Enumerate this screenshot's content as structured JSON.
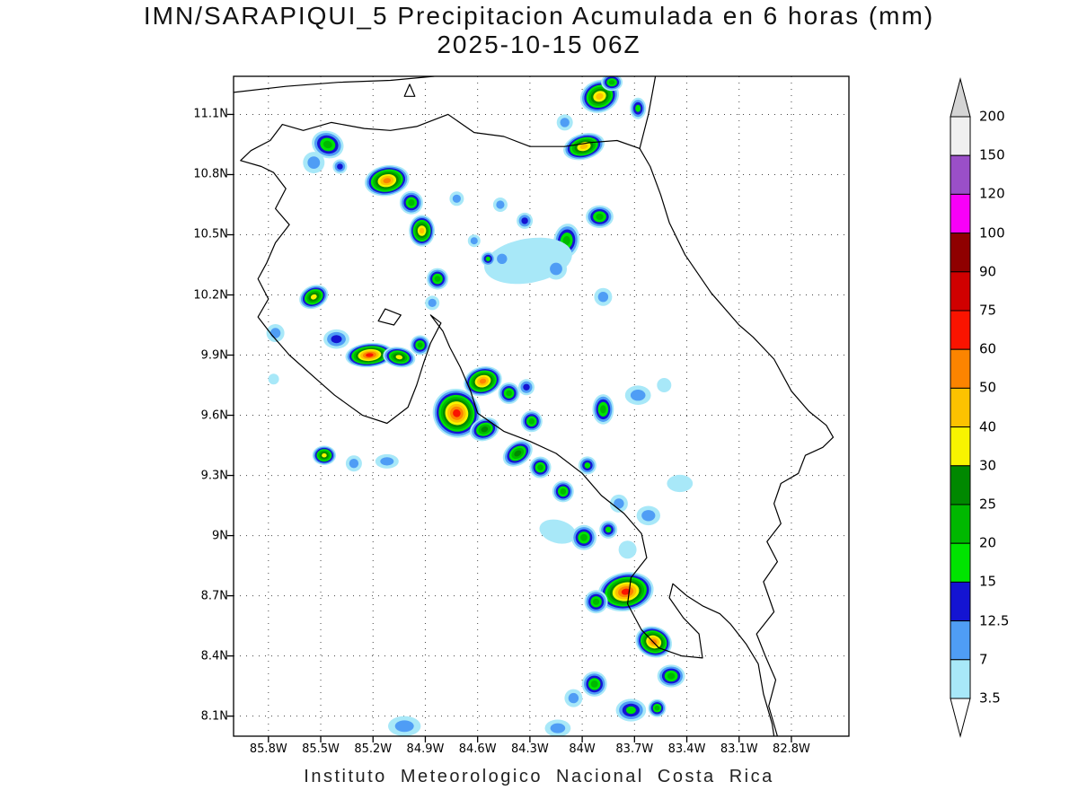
{
  "title": {
    "line1": "IMN/SARAPIQUI_5 Precipitacion Acumulada en 6 horas (mm)",
    "line2": "2025-10-15 06Z"
  },
  "footer": "Instituto Meteorologico Nacional Costa Rica",
  "axes": {
    "lat_values": [
      11.1,
      10.8,
      10.5,
      10.2,
      9.9,
      9.6,
      9.3,
      9.0,
      8.7,
      8.4,
      8.1
    ],
    "lat_labels": [
      "11.1N",
      "10.8N",
      "10.5N",
      "10.2N",
      "9.9N",
      "9.6N",
      "9.3N",
      "9N",
      "8.7N",
      "8.4N",
      "8.1N"
    ],
    "lon_values": [
      85.8,
      85.5,
      85.2,
      84.9,
      84.6,
      84.3,
      84.0,
      83.7,
      83.4,
      83.1,
      82.8
    ],
    "lon_labels": [
      "85.8W",
      "85.5W",
      "85.2W",
      "84.9W",
      "84.6W",
      "84.3W",
      "84W",
      "83.7W",
      "83.4W",
      "83.1W",
      "82.8W"
    ]
  },
  "colorbar": {
    "labels": [
      "200",
      "150",
      "120",
      "100",
      "90",
      "75",
      "60",
      "50",
      "40",
      "30",
      "25",
      "20",
      "15",
      "12.5",
      "7",
      "3.5"
    ]
  },
  "chart_data": {
    "type": "contour_map",
    "variable": "Precipitacion Acumulada en 6 horas",
    "units": "mm",
    "model": "IMN/SARAPIQUI_5",
    "valid_time": "2025-10-15 06Z",
    "extent": {
      "lon_west": 86.0,
      "lon_east": 82.47,
      "lat_north": 11.29,
      "lat_south": 8.0
    },
    "levels_mm": [
      3.5,
      7,
      12.5,
      15,
      20,
      25,
      30,
      40,
      50,
      60,
      75,
      90,
      100,
      120,
      150,
      200
    ],
    "level_colors": [
      "#a8e8f8",
      "#4f9df5",
      "#1414d2",
      "#00e400",
      "#00b800",
      "#008800",
      "#f8f400",
      "#fcc200",
      "#fc8400",
      "#fa1400",
      "#d00000",
      "#8f0000",
      "#f800f8",
      "#9a4fc8",
      "#f0f0f0"
    ],
    "above_top_color": "#d4d4d4",
    "below_bottom_color": "#ffffff",
    "cell_format": [
      "lon_w",
      "lat_n",
      "radius_px",
      "max_level_index",
      "x_stretch",
      "y_stretch",
      "rotation_deg"
    ],
    "cells": [
      [
        83.9,
        11.19,
        20,
        7,
        1.1,
        0.9,
        -20
      ],
      [
        83.83,
        11.26,
        12,
        4,
        1,
        0.8,
        0
      ],
      [
        83.99,
        10.94,
        18,
        7,
        1.3,
        0.8,
        -15
      ],
      [
        84.1,
        11.06,
        9,
        1,
        1,
        1,
        0
      ],
      [
        83.68,
        11.13,
        10,
        3,
        0.9,
        1.2,
        0
      ],
      [
        85.46,
        10.95,
        15,
        4,
        1.2,
        1,
        20
      ],
      [
        85.54,
        10.86,
        12,
        1,
        1,
        1,
        0
      ],
      [
        85.39,
        10.84,
        8,
        2,
        1,
        1,
        0
      ],
      [
        85.12,
        10.77,
        20,
        8,
        1.25,
        0.85,
        -10
      ],
      [
        84.98,
        10.66,
        13,
        4,
        1,
        1,
        30
      ],
      [
        84.72,
        10.68,
        8,
        1,
        1,
        1,
        0
      ],
      [
        84.47,
        10.65,
        8,
        1,
        1,
        1,
        0
      ],
      [
        84.33,
        10.57,
        9,
        2,
        1,
        1,
        0
      ],
      [
        84.92,
        10.52,
        16,
        7,
        0.9,
        1.1,
        0
      ],
      [
        84.83,
        10.28,
        12,
        4,
        1,
        1,
        0
      ],
      [
        84.86,
        10.16,
        8,
        1,
        1,
        1,
        0
      ],
      [
        84.09,
        10.47,
        16,
        4,
        0.9,
        1.2,
        10
      ],
      [
        83.9,
        10.59,
        14,
        4,
        1.1,
        0.9,
        0
      ],
      [
        84.31,
        10.37,
        38,
        0,
        1.3,
        0.65,
        -10
      ],
      [
        84.46,
        10.38,
        10,
        1,
        1,
        1,
        0
      ],
      [
        84.15,
        10.33,
        12,
        1,
        1,
        1,
        0
      ],
      [
        84.54,
        10.38,
        8,
        3,
        1,
        1,
        0
      ],
      [
        83.88,
        10.19,
        10,
        1,
        1,
        1,
        0
      ],
      [
        85.54,
        10.19,
        14,
        6,
        1.2,
        0.9,
        -25
      ],
      [
        85.76,
        10.01,
        10,
        1,
        1,
        1,
        0
      ],
      [
        85.41,
        9.98,
        12,
        2,
        1.2,
        0.9,
        0
      ],
      [
        85.22,
        9.9,
        18,
        9,
        1.5,
        0.75,
        -5
      ],
      [
        85.05,
        9.89,
        14,
        6,
        1.3,
        0.8,
        10
      ],
      [
        84.93,
        9.95,
        11,
        4,
        1,
        1,
        0
      ],
      [
        84.57,
        9.77,
        18,
        8,
        1.2,
        0.9,
        -15
      ],
      [
        84.42,
        9.71,
        12,
        4,
        1,
        1,
        0
      ],
      [
        84.32,
        9.74,
        9,
        2,
        1,
        1,
        0
      ],
      [
        84.72,
        9.61,
        24,
        9,
        1.1,
        1.15,
        -30
      ],
      [
        84.56,
        9.53,
        14,
        5,
        1.2,
        0.9,
        -20
      ],
      [
        84.29,
        9.57,
        12,
        4,
        1,
        1,
        0
      ],
      [
        83.88,
        9.63,
        14,
        4,
        0.85,
        1.2,
        0
      ],
      [
        83.68,
        9.7,
        12,
        1,
        1.2,
        0.9,
        0
      ],
      [
        83.53,
        9.75,
        8,
        0,
        1,
        1,
        0
      ],
      [
        85.48,
        9.4,
        12,
        6,
        1.1,
        0.9,
        0
      ],
      [
        85.31,
        9.36,
        9,
        1,
        1,
        1,
        0
      ],
      [
        85.12,
        9.37,
        10,
        1,
        1.3,
        0.8,
        0
      ],
      [
        84.37,
        9.41,
        15,
        5,
        1.2,
        0.85,
        -35
      ],
      [
        84.24,
        9.34,
        12,
        4,
        1,
        1,
        -30
      ],
      [
        84.11,
        9.22,
        12,
        4,
        1,
        1,
        0
      ],
      [
        83.97,
        9.35,
        10,
        3,
        1,
        1,
        0
      ],
      [
        83.79,
        9.16,
        10,
        1,
        1,
        1,
        0
      ],
      [
        83.62,
        9.1,
        12,
        1,
        1.1,
        0.9,
        0
      ],
      [
        83.44,
        9.26,
        12,
        0,
        1.2,
        0.8,
        0
      ],
      [
        84.14,
        9.02,
        16,
        0,
        1.3,
        0.8,
        15
      ],
      [
        83.99,
        8.99,
        14,
        4,
        1,
        1,
        0
      ],
      [
        83.85,
        9.03,
        10,
        3,
        1,
        1,
        0
      ],
      [
        83.74,
        8.93,
        10,
        0,
        1,
        1,
        0
      ],
      [
        83.75,
        8.72,
        24,
        9,
        1.3,
        0.9,
        -10
      ],
      [
        83.92,
        8.67,
        13,
        4,
        1,
        1,
        0
      ],
      [
        83.59,
        8.47,
        18,
        8,
        1.15,
        0.95,
        20
      ],
      [
        83.49,
        8.3,
        14,
        4,
        1.1,
        0.9,
        0
      ],
      [
        83.93,
        8.26,
        14,
        4,
        1,
        1,
        0
      ],
      [
        84.05,
        8.19,
        10,
        1,
        1,
        1,
        0
      ],
      [
        83.72,
        8.13,
        14,
        3,
        1.2,
        0.9,
        0
      ],
      [
        83.57,
        8.14,
        10,
        4,
        1,
        1,
        0
      ],
      [
        85.02,
        8.05,
        14,
        1,
        1.3,
        0.8,
        0
      ],
      [
        84.14,
        8.04,
        12,
        1,
        1.2,
        0.8,
        0
      ],
      [
        85.77,
        9.78,
        6,
        0,
        1,
        1,
        0
      ],
      [
        84.62,
        10.47,
        7,
        1,
        1,
        1,
        0
      ]
    ]
  },
  "map": {
    "coastlines": [
      {
        "name": "lake-nicaragua-shore",
        "closed": false,
        "pts": [
          [
            86.0,
            11.21
          ],
          [
            85.7,
            11.24
          ],
          [
            85.4,
            11.26
          ],
          [
            85.1,
            11.27
          ],
          [
            84.85,
            11.29
          ]
        ]
      },
      {
        "name": "lake-island",
        "closed": true,
        "pts": [
          [
            85.02,
            11.19
          ],
          [
            84.96,
            11.19
          ],
          [
            84.99,
            11.25
          ]
        ]
      },
      {
        "name": "nicaragua-border",
        "closed": false,
        "pts": [
          [
            85.72,
            11.05
          ],
          [
            85.6,
            11.02
          ],
          [
            85.44,
            11.06
          ],
          [
            85.25,
            11.03
          ],
          [
            85.1,
            11.02
          ],
          [
            84.95,
            11.04
          ],
          [
            84.77,
            11.1
          ],
          [
            84.62,
            11.01
          ],
          [
            84.45,
            10.99
          ],
          [
            84.3,
            10.94
          ],
          [
            84.1,
            10.94
          ],
          [
            83.95,
            10.96
          ],
          [
            83.8,
            10.97
          ],
          [
            83.67,
            10.93
          ]
        ]
      },
      {
        "name": "nicaragua-caribbean-coast",
        "closed": false,
        "pts": [
          [
            83.67,
            10.93
          ],
          [
            83.62,
            11.1
          ],
          [
            83.58,
            11.29
          ]
        ]
      },
      {
        "name": "caribbean-coast-panama-border",
        "closed": false,
        "pts": [
          [
            83.67,
            10.93
          ],
          [
            83.61,
            10.84
          ],
          [
            83.55,
            10.7
          ],
          [
            83.5,
            10.56
          ],
          [
            83.41,
            10.4
          ],
          [
            83.26,
            10.21
          ],
          [
            83.1,
            10.05
          ],
          [
            83.02,
            9.99
          ],
          [
            82.9,
            9.88
          ],
          [
            82.8,
            9.72
          ],
          [
            82.7,
            9.62
          ],
          [
            82.6,
            9.55
          ],
          [
            82.56,
            9.49
          ],
          [
            82.62,
            9.44
          ],
          [
            82.72,
            9.4
          ],
          [
            82.76,
            9.31
          ],
          [
            82.86,
            9.26
          ],
          [
            82.9,
            9.16
          ],
          [
            82.86,
            9.06
          ],
          [
            82.94,
            8.97
          ],
          [
            82.88,
            8.87
          ],
          [
            82.96,
            8.77
          ],
          [
            82.9,
            8.62
          ],
          [
            83.0,
            8.51
          ],
          [
            82.95,
            8.4
          ],
          [
            82.89,
            8.28
          ],
          [
            82.93,
            8.15
          ],
          [
            82.88,
            8.0
          ]
        ]
      },
      {
        "name": "pacific-coast",
        "closed": false,
        "pts": [
          [
            85.72,
            11.05
          ],
          [
            85.79,
            10.97
          ],
          [
            85.9,
            10.92
          ],
          [
            85.96,
            10.87
          ],
          [
            85.84,
            10.84
          ],
          [
            85.77,
            10.81
          ],
          [
            85.7,
            10.73
          ],
          [
            85.76,
            10.63
          ],
          [
            85.68,
            10.55
          ],
          [
            85.76,
            10.46
          ],
          [
            85.81,
            10.36
          ],
          [
            85.86,
            10.28
          ],
          [
            85.8,
            10.18
          ],
          [
            85.86,
            10.09
          ],
          [
            85.78,
            10.0
          ],
          [
            85.68,
            9.9
          ],
          [
            85.55,
            9.8
          ],
          [
            85.42,
            9.7
          ],
          [
            85.26,
            9.6
          ],
          [
            85.12,
            9.56
          ],
          [
            85.0,
            9.64
          ],
          [
            84.95,
            9.75
          ],
          [
            84.91,
            9.86
          ],
          [
            84.87,
            9.96
          ],
          [
            84.81,
            10.06
          ],
          [
            84.87,
            10.1
          ],
          [
            84.8,
            10.02
          ],
          [
            84.76,
            9.94
          ],
          [
            84.7,
            9.84
          ],
          [
            84.64,
            9.72
          ],
          [
            84.6,
            9.61
          ],
          [
            84.45,
            9.52
          ],
          [
            84.3,
            9.47
          ],
          [
            84.15,
            9.41
          ],
          [
            84.0,
            9.31
          ],
          [
            83.89,
            9.2
          ],
          [
            83.76,
            9.11
          ],
          [
            83.66,
            9.01
          ],
          [
            83.63,
            8.89
          ],
          [
            83.72,
            8.79
          ],
          [
            83.74,
            8.66
          ],
          [
            83.66,
            8.53
          ],
          [
            83.56,
            8.44
          ],
          [
            83.43,
            8.4
          ],
          [
            83.31,
            8.39
          ],
          [
            83.33,
            8.51
          ],
          [
            83.42,
            8.59
          ],
          [
            83.5,
            8.69
          ],
          [
            83.48,
            8.76
          ],
          [
            83.4,
            8.7
          ],
          [
            83.31,
            8.65
          ],
          [
            83.21,
            8.61
          ],
          [
            83.15,
            8.56
          ],
          [
            83.06,
            8.46
          ],
          [
            82.99,
            8.36
          ],
          [
            82.96,
            8.21
          ],
          [
            82.91,
            8.06
          ],
          [
            82.9,
            8.0
          ]
        ]
      },
      {
        "name": "chira-island",
        "closed": true,
        "pts": [
          [
            85.17,
            10.07
          ],
          [
            85.08,
            10.05
          ],
          [
            85.04,
            10.1
          ],
          [
            85.13,
            10.13
          ]
        ]
      }
    ]
  }
}
